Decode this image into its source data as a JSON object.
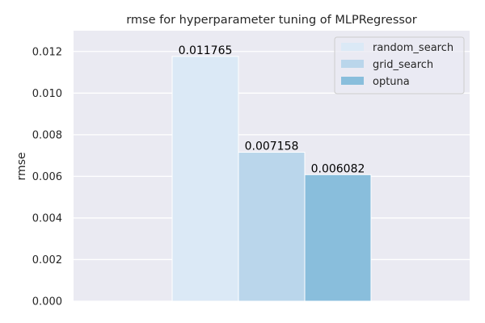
{
  "chart_data": {
    "type": "bar",
    "title": "rmse for hyperparameter tuning of MLPRegressor",
    "xlabel": "",
    "ylabel": "rmse",
    "ylim": [
      0,
      0.013
    ],
    "yticks": [
      "0.000",
      "0.002",
      "0.004",
      "0.006",
      "0.008",
      "0.010",
      "0.012"
    ],
    "grid": true,
    "legend_position": "top-right",
    "series": [
      {
        "name": "random_search",
        "value": 0.011765,
        "label": "0.011765",
        "color": "#dbe9f6"
      },
      {
        "name": "grid_search",
        "value": 0.007158,
        "label": "0.007158",
        "color": "#bad6eb"
      },
      {
        "name": "optuna",
        "value": 0.006082,
        "label": "0.006082",
        "color": "#89bedc"
      }
    ]
  }
}
